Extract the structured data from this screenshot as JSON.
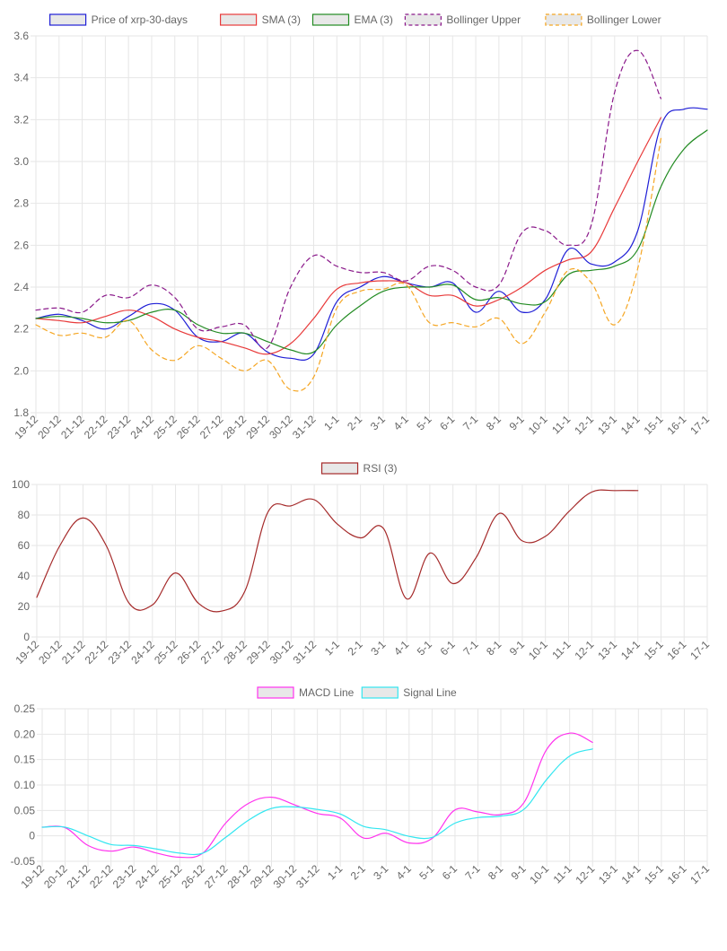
{
  "colors": {
    "price": "#1f1fd6",
    "sma": "#e83a3a",
    "ema": "#228b22",
    "boll_upper": "#8b1a8b",
    "boll_lower": "#f5a623",
    "rsi": "#a52a2a",
    "macd": "#ff33ee",
    "signal": "#33e6f0",
    "grid": "#e6e6e6",
    "text": "#666666"
  },
  "chart_data": [
    {
      "type": "line",
      "title": "",
      "xlabel": "",
      "ylabel": "",
      "categories": [
        "19-12",
        "20-12",
        "21-12",
        "22-12",
        "23-12",
        "24-12",
        "25-12",
        "26-12",
        "27-12",
        "28-12",
        "29-12",
        "30-12",
        "31-12",
        "1-1",
        "2-1",
        "3-1",
        "4-1",
        "5-1",
        "6-1",
        "7-1",
        "8-1",
        "9-1",
        "10-1",
        "11-1",
        "12-1",
        "13-1",
        "14-1",
        "15-1",
        "16-1",
        "17-1"
      ],
      "ylim": [
        1.8,
        3.6
      ],
      "yticks": [
        "1.8",
        "2.0",
        "2.2",
        "2.4",
        "2.6",
        "2.8",
        "3.0",
        "3.2",
        "3.4",
        "3.6"
      ],
      "ytick_values": [
        1.8,
        2.0,
        2.2,
        2.4,
        2.6,
        2.8,
        3.0,
        3.2,
        3.4,
        3.6
      ],
      "legend_position": "top-center",
      "series": [
        {
          "name": "Price of xrp-30-days",
          "color_key": "price",
          "dashed": false,
          "values": [
            2.25,
            2.27,
            2.24,
            2.2,
            2.26,
            2.32,
            2.29,
            2.16,
            2.14,
            2.18,
            2.09,
            2.06,
            2.08,
            2.33,
            2.4,
            2.45,
            2.42,
            2.4,
            2.42,
            2.28,
            2.38,
            2.28,
            2.34,
            2.58,
            2.51,
            2.52,
            2.67,
            3.17,
            3.25,
            3.25
          ]
        },
        {
          "name": "SMA (3)",
          "color_key": "sma",
          "dashed": false,
          "values": [
            2.25,
            2.24,
            2.23,
            2.26,
            2.29,
            2.26,
            2.2,
            2.16,
            2.14,
            2.11,
            2.08,
            2.13,
            2.25,
            2.39,
            2.42,
            2.43,
            2.42,
            2.36,
            2.36,
            2.31,
            2.34,
            2.4,
            2.48,
            2.53,
            2.57,
            2.78,
            3.0,
            3.21,
            null,
            null
          ]
        },
        {
          "name": "EMA (3)",
          "color_key": "ema",
          "dashed": false,
          "values": [
            2.25,
            2.26,
            2.25,
            2.23,
            2.24,
            2.28,
            2.29,
            2.22,
            2.18,
            2.18,
            2.14,
            2.1,
            2.09,
            2.22,
            2.31,
            2.38,
            2.4,
            2.4,
            2.41,
            2.34,
            2.35,
            2.32,
            2.33,
            2.46,
            2.48,
            2.5,
            2.58,
            2.88,
            3.06,
            3.15
          ]
        },
        {
          "name": "Bollinger Upper",
          "color_key": "boll_upper",
          "dashed": true,
          "values": [
            2.29,
            2.3,
            2.28,
            2.36,
            2.35,
            2.41,
            2.35,
            2.2,
            2.21,
            2.22,
            2.11,
            2.4,
            2.55,
            2.5,
            2.47,
            2.47,
            2.43,
            2.5,
            2.48,
            2.4,
            2.41,
            2.66,
            2.67,
            2.6,
            2.7,
            3.33,
            3.53,
            3.3,
            null,
            null
          ]
        },
        {
          "name": "Bollinger Lower",
          "color_key": "boll_lower",
          "dashed": true,
          "values": [
            2.22,
            2.17,
            2.18,
            2.16,
            2.24,
            2.1,
            2.05,
            2.12,
            2.06,
            2.0,
            2.05,
            1.91,
            1.97,
            2.3,
            2.38,
            2.39,
            2.41,
            2.23,
            2.23,
            2.21,
            2.25,
            2.13,
            2.28,
            2.48,
            2.42,
            2.22,
            2.49,
            3.11,
            null,
            null
          ]
        }
      ]
    },
    {
      "type": "line",
      "title": "",
      "xlabel": "",
      "ylabel": "",
      "categories": [
        "19-12",
        "20-12",
        "21-12",
        "22-12",
        "23-12",
        "24-12",
        "25-12",
        "26-12",
        "27-12",
        "28-12",
        "29-12",
        "30-12",
        "31-12",
        "1-1",
        "2-1",
        "3-1",
        "4-1",
        "5-1",
        "6-1",
        "7-1",
        "8-1",
        "9-1",
        "10-1",
        "11-1",
        "12-1",
        "13-1",
        "14-1",
        "15-1",
        "16-1",
        "17-1"
      ],
      "ylim": [
        0,
        100
      ],
      "yticks": [
        "0",
        "20",
        "40",
        "60",
        "80",
        "100"
      ],
      "ytick_values": [
        0,
        20,
        40,
        60,
        80,
        100
      ],
      "legend_position": "top-center",
      "series": [
        {
          "name": "RSI (3)",
          "color_key": "rsi",
          "dashed": false,
          "values": [
            26,
            60,
            78,
            60,
            22,
            21,
            42,
            22,
            17,
            30,
            82,
            86,
            90,
            74,
            65,
            71,
            25,
            55,
            35,
            52,
            81,
            63,
            66,
            82,
            95,
            96,
            96,
            null,
            null,
            null
          ]
        }
      ]
    },
    {
      "type": "line",
      "title": "",
      "xlabel": "",
      "ylabel": "",
      "categories": [
        "19-12",
        "20-12",
        "21-12",
        "22-12",
        "23-12",
        "24-12",
        "25-12",
        "26-12",
        "27-12",
        "28-12",
        "29-12",
        "30-12",
        "31-12",
        "1-1",
        "2-1",
        "3-1",
        "4-1",
        "5-1",
        "6-1",
        "7-1",
        "8-1",
        "9-1",
        "10-1",
        "11-1",
        "12-1",
        "13-1",
        "14-1",
        "15-1",
        "16-1",
        "17-1"
      ],
      "ylim": [
        -0.05,
        0.25
      ],
      "yticks": [
        "-0.05",
        "0",
        "0.05",
        "0.10",
        "0.15",
        "0.20",
        "0.25"
      ],
      "ytick_values": [
        -0.05,
        0,
        0.05,
        0.1,
        0.15,
        0.2,
        0.25
      ],
      "legend_position": "top-center",
      "series": [
        {
          "name": "MACD Line",
          "color_key": "macd",
          "dashed": false,
          "values": [
            0.017,
            0.016,
            -0.019,
            -0.03,
            -0.022,
            -0.034,
            -0.042,
            -0.034,
            0.025,
            0.064,
            0.076,
            0.061,
            0.044,
            0.035,
            -0.004,
            0.005,
            -0.014,
            -0.005,
            0.051,
            0.047,
            0.042,
            0.065,
            0.17,
            0.202,
            0.184,
            null,
            null,
            null,
            null,
            null
          ]
        },
        {
          "name": "Signal Line",
          "color_key": "signal",
          "dashed": false,
          "values": [
            0.017,
            0.017,
            0.0,
            -0.017,
            -0.019,
            -0.026,
            -0.034,
            -0.034,
            -0.003,
            0.031,
            0.054,
            0.057,
            0.052,
            0.043,
            0.019,
            0.012,
            -0.001,
            -0.003,
            0.025,
            0.036,
            0.039,
            0.052,
            0.111,
            0.157,
            0.171,
            null,
            null,
            null,
            null,
            null
          ]
        }
      ]
    }
  ]
}
